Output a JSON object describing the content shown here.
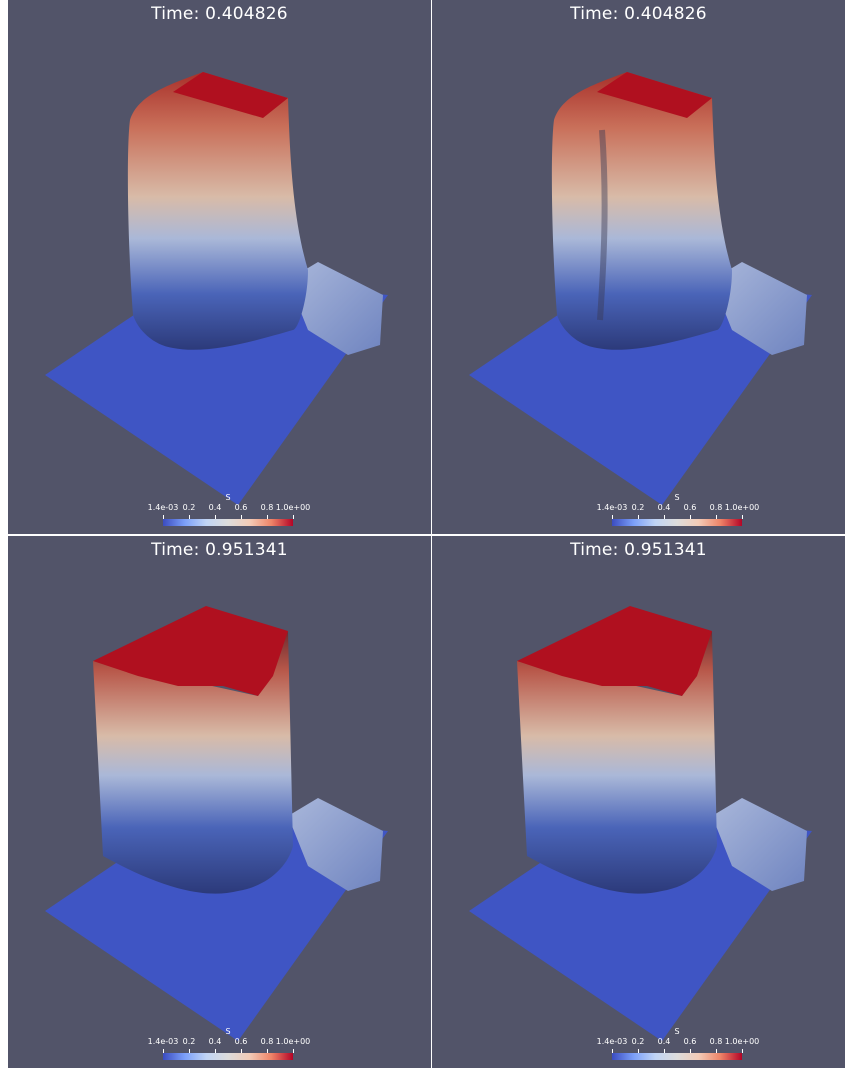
{
  "panels": [
    {
      "title": "Time: 0.404826"
    },
    {
      "title": "Time: 0.404826"
    },
    {
      "title": "Time: 0.951341"
    },
    {
      "title": "Time: 0.951341"
    }
  ],
  "colorbar": {
    "name": "S",
    "ticks": [
      "1.4e-03",
      "0.2",
      "0.4",
      "0.6",
      "0.8",
      "1.0e+00"
    ],
    "colors": [
      "#3b4cc0",
      "#dddcdc",
      "#b40426"
    ]
  },
  "background_color": "#525469",
  "floor_color": "#3f55c4"
}
